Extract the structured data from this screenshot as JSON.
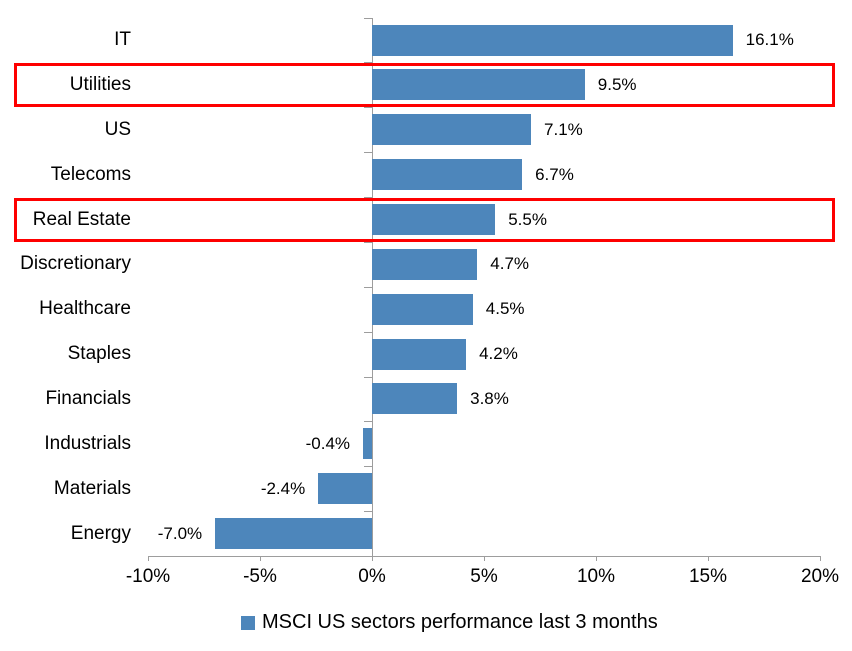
{
  "chart_data": {
    "type": "bar",
    "orientation": "horizontal",
    "title": "",
    "categories": [
      "IT",
      "Utilities",
      "US",
      "Telecoms",
      "Real Estate",
      "Discretionary",
      "Healthcare",
      "Staples",
      "Financials",
      "Industrials",
      "Materials",
      "Energy"
    ],
    "values": [
      16.1,
      9.5,
      7.1,
      6.7,
      5.5,
      4.7,
      4.5,
      4.2,
      3.8,
      -0.4,
      -2.4,
      -7.0
    ],
    "value_labels": [
      "16.1%",
      "9.5%",
      "7.1%",
      "6.7%",
      "5.5%",
      "4.7%",
      "4.5%",
      "4.2%",
      "3.8%",
      "-0.4%",
      "-2.4%",
      "-7.0%"
    ],
    "xlim": [
      -10,
      20
    ],
    "x_tick_values": [
      -10,
      -5,
      0,
      5,
      10,
      15,
      20
    ],
    "x_tick_labels": [
      "-10%",
      "-5%",
      "0%",
      "5%",
      "10%",
      "15%",
      "20%"
    ],
    "grid": false,
    "legend": "MSCI US sectors performance last 3 months",
    "legend_position": "bottom-center",
    "highlighted_categories": [
      "Utilities",
      "Real Estate"
    ],
    "bar_color": "#4d86bb",
    "highlight_box_color": "#fe0000",
    "axis_color": "#9d9d9d",
    "text_color": "#000000"
  }
}
